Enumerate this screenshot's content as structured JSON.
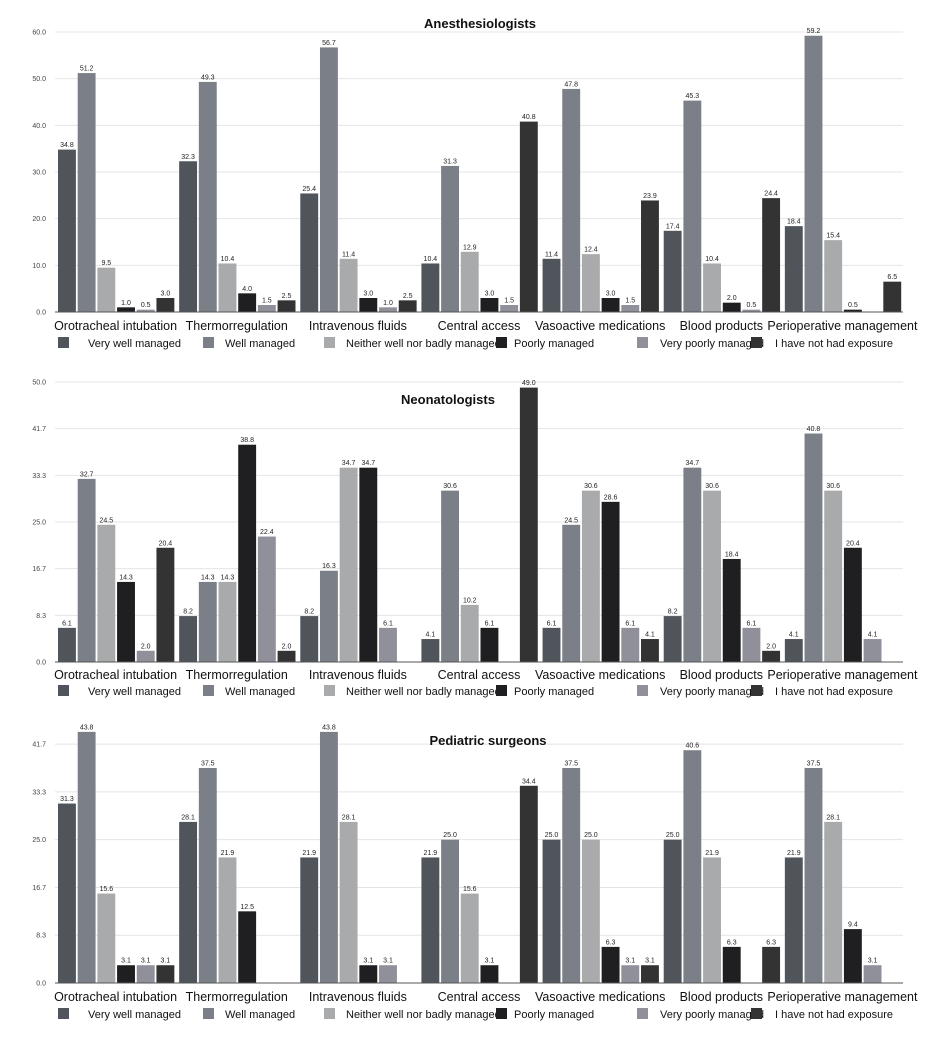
{
  "chart_data": [
    {
      "type": "bar",
      "title": "Anesthesiologists",
      "xlabel": "",
      "ylabel": "",
      "ylim": [
        0,
        60
      ],
      "yticks": [
        "0.0",
        "10.0",
        "20.0",
        "30.0",
        "40.0",
        "50.0",
        "60.0"
      ],
      "ytick_values": [
        0,
        10,
        20,
        30,
        40,
        50,
        60
      ],
      "grid": true,
      "legend_position": "bottom",
      "categories": [
        "Orotracheal intubation",
        "Thermorregulation",
        "Intravenous fluids",
        "Central access",
        "Vasoactive medications",
        "Blood products",
        "Perioperative management"
      ],
      "series": [
        {
          "name": "Very well managed",
          "values": [
            34.8,
            32.3,
            25.4,
            10.4,
            11.4,
            17.4,
            18.4
          ]
        },
        {
          "name": "Well managed",
          "values": [
            51.2,
            49.3,
            56.7,
            31.3,
            47.8,
            45.3,
            59.2
          ]
        },
        {
          "name": "Neither well nor badly managed",
          "values": [
            9.5,
            10.4,
            11.4,
            12.9,
            12.4,
            10.4,
            15.4
          ]
        },
        {
          "name": "Poorly managed",
          "values": [
            1.0,
            4.0,
            3.0,
            3.0,
            3.0,
            2.0,
            0.5
          ]
        },
        {
          "name": "Very poorly managed",
          "values": [
            0.5,
            1.5,
            1.0,
            1.5,
            1.5,
            0.5,
            null
          ]
        },
        {
          "name": "I have not had exposure",
          "values": [
            3.0,
            2.5,
            2.5,
            40.8,
            23.9,
            24.4,
            6.5
          ]
        }
      ]
    },
    {
      "type": "bar",
      "title": "Neonatologists",
      "xlabel": "",
      "ylabel": "",
      "ylim": [
        0,
        50
      ],
      "yticks": [
        "0.0",
        "8.3",
        "16.7",
        "25.0",
        "33.3",
        "41.7",
        "50.0"
      ],
      "ytick_values": [
        0,
        8.333,
        16.667,
        25,
        33.333,
        41.667,
        50
      ],
      "grid": true,
      "legend_position": "bottom",
      "categories": [
        "Orotracheal intubation",
        "Thermorregulation",
        "Intravenous fluids",
        "Central access",
        "Vasoactive medications",
        "Blood products",
        "Perioperative management"
      ],
      "series": [
        {
          "name": "Very well managed",
          "values": [
            6.1,
            8.2,
            8.2,
            4.1,
            6.1,
            8.2,
            4.1
          ]
        },
        {
          "name": "Well managed",
          "values": [
            32.7,
            14.3,
            16.3,
            30.6,
            24.5,
            34.7,
            40.8
          ]
        },
        {
          "name": "Neither well nor badly managed",
          "values": [
            24.5,
            14.3,
            34.7,
            10.2,
            30.6,
            30.6,
            30.6
          ]
        },
        {
          "name": "Poorly managed",
          "values": [
            14.3,
            38.8,
            34.7,
            6.1,
            28.6,
            18.4,
            20.4
          ]
        },
        {
          "name": "Very poorly managed",
          "values": [
            2.0,
            22.4,
            6.1,
            null,
            6.1,
            6.1,
            4.1
          ]
        },
        {
          "name": "I have not had exposure",
          "values": [
            20.4,
            2.0,
            null,
            49.0,
            4.1,
            2.0,
            null
          ]
        }
      ]
    },
    {
      "type": "bar",
      "title": "Pediatric surgeons",
      "xlabel": "",
      "ylabel": "",
      "ylim": [
        0,
        45
      ],
      "yticks": [
        "0.0",
        "8.3",
        "16.7",
        "25.0",
        "33.3",
        "41.7"
      ],
      "ytick_values": [
        0,
        8.333,
        16.667,
        25,
        33.333,
        41.667
      ],
      "grid": true,
      "legend_position": "bottom",
      "categories": [
        "Orotracheal intubation",
        "Thermorregulation",
        "Intravenous fluids",
        "Central access",
        "Vasoactive medications",
        "Blood products",
        "Perioperative management"
      ],
      "series": [
        {
          "name": "Very well managed",
          "values": [
            31.3,
            28.1,
            21.9,
            21.9,
            25.0,
            25.0,
            21.9
          ]
        },
        {
          "name": "Well managed",
          "values": [
            43.8,
            37.5,
            43.8,
            25.0,
            37.5,
            40.6,
            37.5
          ]
        },
        {
          "name": "Neither well nor badly managed",
          "values": [
            15.6,
            21.9,
            28.1,
            15.6,
            25.0,
            21.9,
            28.1
          ]
        },
        {
          "name": "Poorly managed",
          "values": [
            3.1,
            12.5,
            3.1,
            3.1,
            6.3,
            6.3,
            9.4
          ]
        },
        {
          "name": "Very poorly managed",
          "values": [
            3.1,
            null,
            3.1,
            null,
            3.1,
            null,
            3.1
          ]
        },
        {
          "name": "I have not had exposure",
          "values": [
            3.1,
            null,
            null,
            34.4,
            3.1,
            6.3,
            null
          ]
        }
      ]
    }
  ],
  "series_colors": [
    "#50555c",
    "#7b8088",
    "#a8aaac",
    "#1f1f21",
    "#8f909a",
    "#333334"
  ]
}
